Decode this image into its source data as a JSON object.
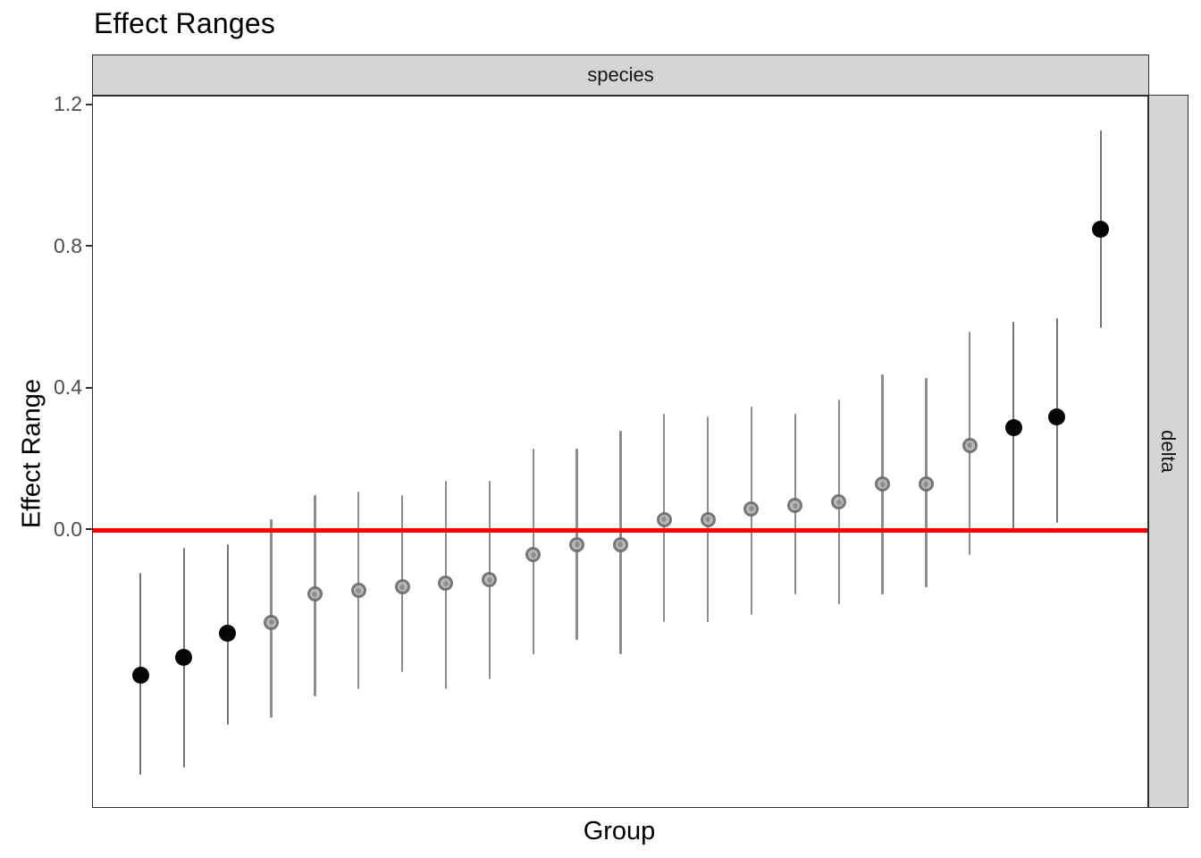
{
  "chart_data": {
    "type": "scatter",
    "title": "Effect Ranges",
    "xlabel": "Group",
    "ylabel": "Effect Range",
    "facet_col_strip": "species",
    "facet_row_strip": "delta",
    "grid": false,
    "legend": "none",
    "ylim": [
      -0.782,
      1.225
    ],
    "y_ticks": {
      "labels": [
        "1.2",
        "0.8",
        "0.4",
        "0.0"
      ],
      "values": [
        1.2,
        0.8,
        0.4,
        0.0
      ]
    },
    "ref_line": {
      "y": 0.0,
      "color": "#FF0000"
    },
    "points": [
      {
        "group": 1,
        "value": -0.41,
        "lo": -0.69,
        "hi": -0.12,
        "highlight": true
      },
      {
        "group": 2,
        "value": -0.36,
        "lo": -0.67,
        "hi": -0.05,
        "highlight": true
      },
      {
        "group": 3,
        "value": -0.29,
        "lo": -0.55,
        "hi": -0.04,
        "highlight": true
      },
      {
        "group": 4,
        "value": -0.26,
        "lo": -0.53,
        "hi": 0.03,
        "highlight": false
      },
      {
        "group": 5,
        "value": -0.18,
        "lo": -0.47,
        "hi": 0.1,
        "highlight": false
      },
      {
        "group": 6,
        "value": -0.17,
        "lo": -0.45,
        "hi": 0.11,
        "highlight": false
      },
      {
        "group": 7,
        "value": -0.16,
        "lo": -0.4,
        "hi": 0.1,
        "highlight": false
      },
      {
        "group": 8,
        "value": -0.15,
        "lo": -0.45,
        "hi": 0.14,
        "highlight": false
      },
      {
        "group": 9,
        "value": -0.14,
        "lo": -0.42,
        "hi": 0.14,
        "highlight": false
      },
      {
        "group": 10,
        "value": -0.07,
        "lo": -0.35,
        "hi": 0.23,
        "highlight": false
      },
      {
        "group": 11,
        "value": -0.04,
        "lo": -0.31,
        "hi": 0.23,
        "highlight": false
      },
      {
        "group": 12,
        "value": -0.04,
        "lo": -0.35,
        "hi": 0.28,
        "highlight": false
      },
      {
        "group": 13,
        "value": 0.03,
        "lo": -0.26,
        "hi": 0.33,
        "highlight": false
      },
      {
        "group": 14,
        "value": 0.03,
        "lo": -0.26,
        "hi": 0.32,
        "highlight": false
      },
      {
        "group": 15,
        "value": 0.06,
        "lo": -0.24,
        "hi": 0.35,
        "highlight": false
      },
      {
        "group": 16,
        "value": 0.07,
        "lo": -0.18,
        "hi": 0.33,
        "highlight": false
      },
      {
        "group": 17,
        "value": 0.08,
        "lo": -0.21,
        "hi": 0.37,
        "highlight": false
      },
      {
        "group": 18,
        "value": 0.13,
        "lo": -0.18,
        "hi": 0.44,
        "highlight": false
      },
      {
        "group": 19,
        "value": 0.13,
        "lo": -0.16,
        "hi": 0.43,
        "highlight": false
      },
      {
        "group": 20,
        "value": 0.24,
        "lo": -0.07,
        "hi": 0.56,
        "highlight": false
      },
      {
        "group": 21,
        "value": 0.29,
        "lo": 0.0,
        "hi": 0.59,
        "highlight": true
      },
      {
        "group": 22,
        "value": 0.32,
        "lo": 0.02,
        "hi": 0.6,
        "highlight": true
      },
      {
        "group": 23,
        "value": 0.85,
        "lo": 0.57,
        "hi": 1.13,
        "highlight": true
      }
    ],
    "colors": {
      "highlight_point": "#060606",
      "normal_point_fill": "#b5b5b5",
      "normal_point_stroke": "#6c6c6c",
      "errorbar_normal": "#8c8c8c",
      "errorbar_highlight": "#747474",
      "ref_line": "#FF0000",
      "strip_background": "#d5d5d5",
      "panel_border": "#2e2e2e"
    }
  }
}
